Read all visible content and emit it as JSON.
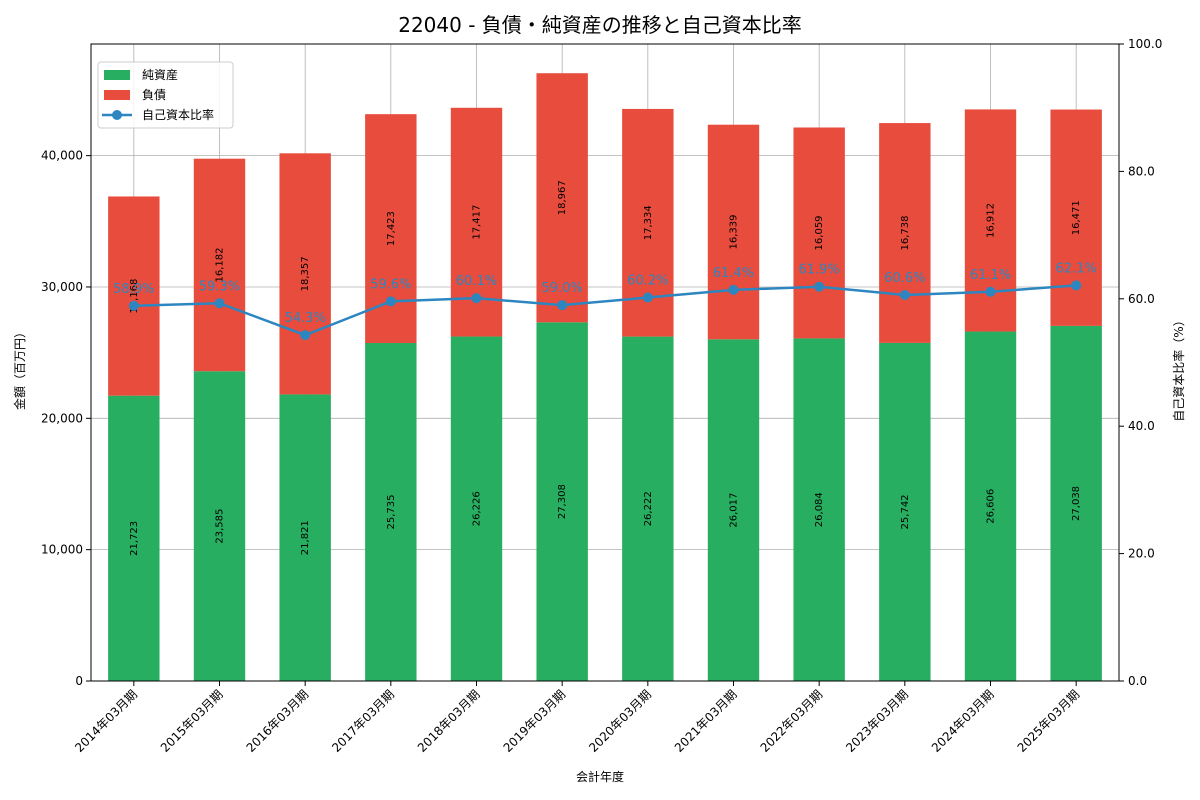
{
  "chart_data": {
    "type": "bar",
    "stacked": true,
    "title": "22040 - 負債・純資産の推移と自己資本比率",
    "xlabel": "会計年度",
    "ylabel": "金額（百万円）",
    "y2label": "自己資本比率（%）",
    "ylim": [
      0,
      48500
    ],
    "y2lim": [
      0,
      100
    ],
    "yticks": [
      0,
      10000,
      20000,
      30000,
      40000
    ],
    "ytick_labels": [
      "0",
      "10,000",
      "20,000",
      "30,000",
      "40,000"
    ],
    "y2ticks": [
      0,
      20,
      40,
      60,
      80,
      100
    ],
    "y2tick_labels": [
      "0.0",
      "20.0",
      "40.0",
      "60.0",
      "80.0",
      "100.0"
    ],
    "grid": true,
    "legend_position": "top-left",
    "categories": [
      "2014年03月期",
      "2015年03月期",
      "2016年03月期",
      "2017年03月期",
      "2018年03月期",
      "2019年03月期",
      "2020年03月期",
      "2021年03月期",
      "2022年03月期",
      "2023年03月期",
      "2024年03月期",
      "2025年03月期"
    ],
    "series": [
      {
        "name": "純資産",
        "kind": "bar",
        "color": "#27ae60",
        "values": [
          21723,
          23585,
          21821,
          25735,
          26226,
          27308,
          26222,
          26017,
          26084,
          25742,
          26606,
          27038
        ],
        "labels": [
          "21,723",
          "23,585",
          "21,821",
          "25,735",
          "26,226",
          "27,308",
          "26,222",
          "26,017",
          "26,084",
          "25,742",
          "26,606",
          "27,038"
        ]
      },
      {
        "name": "負債",
        "kind": "bar",
        "color": "#e74c3c",
        "values": [
          15168,
          16182,
          18357,
          17423,
          17417,
          18967,
          17334,
          16339,
          16059,
          16738,
          16912,
          16471
        ],
        "labels": [
          "15,168",
          "16,182",
          "18,357",
          "17,423",
          "17,417",
          "18,967",
          "17,334",
          "16,339",
          "16,059",
          "16,738",
          "16,912",
          "16,471"
        ]
      },
      {
        "name": "自己資本比率",
        "kind": "line",
        "axis": "right",
        "color": "#2e86c1",
        "values": [
          58.9,
          59.3,
          54.3,
          59.6,
          60.1,
          59.0,
          60.2,
          61.4,
          61.9,
          60.6,
          61.1,
          62.1
        ],
        "labels": [
          "58.9%",
          "59.3%",
          "54.3%",
          "59.6%",
          "60.1%",
          "59.0%",
          "60.2%",
          "61.4%",
          "61.9%",
          "60.6%",
          "61.1%",
          "62.1%"
        ]
      }
    ]
  }
}
